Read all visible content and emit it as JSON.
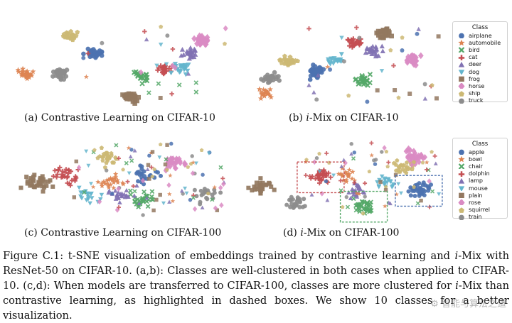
{
  "figure": {
    "panels": [
      {
        "id": "a",
        "prefix": "(a) ",
        "italic": "",
        "rest": "Contrastive Learning on CIFAR-10"
      },
      {
        "id": "b",
        "prefix": "(b) ",
        "italic": "i",
        "rest": "-Mix on CIFAR-10"
      },
      {
        "id": "c",
        "prefix": "(c) ",
        "italic": "",
        "rest": "Contrastive Learning on CIFAR-100"
      },
      {
        "id": "d",
        "prefix": "(d) ",
        "italic": "i",
        "rest": "-Mix on CIFAR-100"
      }
    ],
    "legend_top": {
      "title": "Class",
      "items": [
        {
          "label": "airplane",
          "color": "#4c72b0",
          "marker": "circle"
        },
        {
          "label": "automobile",
          "color": "#dd8452",
          "marker": "star"
        },
        {
          "label": "bird",
          "color": "#55a868",
          "marker": "x"
        },
        {
          "label": "cat",
          "color": "#c44e52",
          "marker": "plus"
        },
        {
          "label": "deer",
          "color": "#8172b3",
          "marker": "triangle"
        },
        {
          "label": "dog",
          "color": "#64b5cd",
          "marker": "triangle-down"
        },
        {
          "label": "frog",
          "color": "#937860",
          "marker": "square"
        },
        {
          "label": "horse",
          "color": "#da8bc3",
          "marker": "diamond"
        },
        {
          "label": "ship",
          "color": "#ccb974",
          "marker": "pentagon"
        },
        {
          "label": "truck",
          "color": "#8c8c8c",
          "marker": "circle"
        }
      ]
    },
    "legend_bottom": {
      "title": "Class",
      "items": [
        {
          "label": "apple",
          "color": "#4c72b0",
          "marker": "circle"
        },
        {
          "label": "bowl",
          "color": "#dd8452",
          "marker": "star"
        },
        {
          "label": "chair",
          "color": "#55a868",
          "marker": "x"
        },
        {
          "label": "dolphin",
          "color": "#c44e52",
          "marker": "plus"
        },
        {
          "label": "lamp",
          "color": "#8172b3",
          "marker": "triangle"
        },
        {
          "label": "mouse",
          "color": "#64b5cd",
          "marker": "triangle-down"
        },
        {
          "label": "plain",
          "color": "#937860",
          "marker": "square"
        },
        {
          "label": "rose",
          "color": "#da8bc3",
          "marker": "diamond"
        },
        {
          "label": "squirrel",
          "color": "#ccb974",
          "marker": "pentagon"
        },
        {
          "label": "train",
          "color": "#8c8c8c",
          "marker": "circle"
        }
      ]
    },
    "caption": {
      "label": "Figure C.1:",
      "text1": " t-SNE visualization of embeddings trained by contrastive learning and ",
      "italic1": "i",
      "text2": "-Mix with ResNet-50 on CIFAR-10. (a,b): Classes are well-clustered in both cases when applied to CIFAR-10. (c,d): When models are transferred to CIFAR-100, classes are more clustered for ",
      "italic2": "i",
      "text3": "-Mix than contrastive learning, as highlighted in dashed boxes. We show 10 classes for a better visualization."
    },
    "watermark": "⚙ 智能与算法之道"
  },
  "chart_data": [
    {
      "type": "scatter",
      "title": "(a) Contrastive Learning on CIFAR-10",
      "legend_title": "Class",
      "classes": [
        "airplane",
        "automobile",
        "bird",
        "cat",
        "deer",
        "dog",
        "frog",
        "horse",
        "ship",
        "truck"
      ],
      "cluster_centers": [
        {
          "class": "airplane",
          "x": 0.38,
          "y": 0.62,
          "points": 40
        },
        {
          "class": "automobile",
          "x": 0.06,
          "y": 0.38,
          "points": 25
        },
        {
          "class": "bird",
          "x": 0.6,
          "y": 0.35,
          "points": 20
        },
        {
          "class": "cat",
          "x": 0.7,
          "y": 0.45,
          "points": 25
        },
        {
          "class": "deer",
          "x": 0.82,
          "y": 0.62,
          "points": 25
        },
        {
          "class": "dog",
          "x": 0.78,
          "y": 0.45,
          "points": 25
        },
        {
          "class": "frog",
          "x": 0.55,
          "y": 0.1,
          "points": 30
        },
        {
          "class": "horse",
          "x": 0.88,
          "y": 0.78,
          "points": 30
        },
        {
          "class": "ship",
          "x": 0.27,
          "y": 0.82,
          "points": 25
        },
        {
          "class": "truck",
          "x": 0.22,
          "y": 0.38,
          "points": 30
        }
      ]
    },
    {
      "type": "scatter",
      "title": "(b) i-Mix on CIFAR-10",
      "legend_title": "Class",
      "classes": [
        "airplane",
        "automobile",
        "bird",
        "cat",
        "deer",
        "dog",
        "frog",
        "horse",
        "ship",
        "truck"
      ],
      "cluster_centers": [
        {
          "class": "airplane",
          "x": 0.36,
          "y": 0.4,
          "points": 40
        },
        {
          "class": "automobile",
          "x": 0.1,
          "y": 0.15,
          "points": 20
        },
        {
          "class": "bird",
          "x": 0.6,
          "y": 0.3,
          "points": 25
        },
        {
          "class": "cat",
          "x": 0.55,
          "y": 0.75,
          "points": 25
        },
        {
          "class": "deer",
          "x": 0.65,
          "y": 0.65,
          "points": 25
        },
        {
          "class": "dog",
          "x": 0.45,
          "y": 0.55,
          "points": 20
        },
        {
          "class": "frog",
          "x": 0.7,
          "y": 0.85,
          "points": 30
        },
        {
          "class": "horse",
          "x": 0.85,
          "y": 0.55,
          "points": 30
        },
        {
          "class": "ship",
          "x": 0.22,
          "y": 0.52,
          "points": 30
        },
        {
          "class": "truck",
          "x": 0.12,
          "y": 0.32,
          "points": 25
        }
      ]
    },
    {
      "type": "scatter",
      "title": "(c) Contrastive Learning on CIFAR-100",
      "legend_title": "Class",
      "classes": [
        "apple",
        "bowl",
        "chair",
        "dolphin",
        "lamp",
        "mouse",
        "plain",
        "rose",
        "squirrel",
        "train"
      ],
      "cluster_centers": [
        {
          "class": "apple",
          "x": 0.62,
          "y": 0.55,
          "points": 25
        },
        {
          "class": "bowl",
          "x": 0.45,
          "y": 0.45,
          "points": 25
        },
        {
          "class": "chair",
          "x": 0.6,
          "y": 0.25,
          "points": 30
        },
        {
          "class": "dolphin",
          "x": 0.25,
          "y": 0.55,
          "points": 30
        },
        {
          "class": "lamp",
          "x": 0.5,
          "y": 0.3,
          "points": 25
        },
        {
          "class": "mouse",
          "x": 0.35,
          "y": 0.3,
          "points": 20
        },
        {
          "class": "plain",
          "x": 0.12,
          "y": 0.45,
          "points": 35
        },
        {
          "class": "rose",
          "x": 0.75,
          "y": 0.7,
          "points": 30
        },
        {
          "class": "squirrel",
          "x": 0.45,
          "y": 0.75,
          "points": 25
        },
        {
          "class": "train",
          "x": 0.9,
          "y": 0.3,
          "points": 20
        }
      ]
    },
    {
      "type": "scatter",
      "title": "(d) i-Mix on CIFAR-100",
      "legend_title": "Class",
      "classes": [
        "apple",
        "bowl",
        "chair",
        "dolphin",
        "lamp",
        "mouse",
        "plain",
        "rose",
        "squirrel",
        "train"
      ],
      "cluster_centers": [
        {
          "class": "apple",
          "x": 0.88,
          "y": 0.35,
          "points": 40
        },
        {
          "class": "bowl",
          "x": 0.52,
          "y": 0.55,
          "points": 20
        },
        {
          "class": "chair",
          "x": 0.6,
          "y": 0.15,
          "points": 35
        },
        {
          "class": "dolphin",
          "x": 0.38,
          "y": 0.52,
          "points": 35
        },
        {
          "class": "lamp",
          "x": 0.55,
          "y": 0.35,
          "points": 25
        },
        {
          "class": "mouse",
          "x": 0.72,
          "y": 0.45,
          "points": 20
        },
        {
          "class": "plain",
          "x": 0.08,
          "y": 0.4,
          "points": 30
        },
        {
          "class": "rose",
          "x": 0.85,
          "y": 0.78,
          "points": 35
        },
        {
          "class": "squirrel",
          "x": 0.8,
          "y": 0.65,
          "points": 25
        },
        {
          "class": "train",
          "x": 0.25,
          "y": 0.2,
          "points": 25
        }
      ],
      "highlight_boxes": [
        {
          "class": "dolphin",
          "color": "#c44e52"
        },
        {
          "class": "chair",
          "color": "#55a868"
        },
        {
          "class": "apple",
          "color": "#4c72b0"
        }
      ]
    }
  ]
}
